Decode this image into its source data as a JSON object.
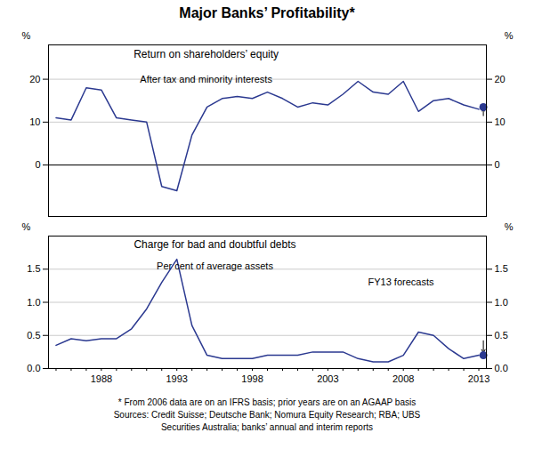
{
  "chart_data": [
    {
      "type": "line",
      "title": "Major Banks’ Profitability*",
      "annotations": [
        "Return on shareholders’ equity",
        "After tax and minority interests"
      ],
      "ylabel": "%",
      "y2label": "%",
      "color": "#2b3990",
      "x": [
        1985,
        1986,
        1987,
        1988,
        1989,
        1990,
        1991,
        1992,
        1993,
        1994,
        1995,
        1996,
        1997,
        1998,
        1999,
        2000,
        2001,
        2002,
        2003,
        2004,
        2005,
        2006,
        2007,
        2008,
        2009,
        2010,
        2011,
        2012,
        2013
      ],
      "values": [
        11.0,
        10.5,
        18.0,
        17.5,
        11.0,
        10.5,
        10.0,
        -5.0,
        -6.0,
        7.0,
        13.5,
        15.5,
        16.0,
        15.5,
        17.0,
        15.5,
        13.5,
        14.5,
        14.0,
        16.5,
        19.5,
        17.0,
        16.5,
        19.5,
        12.5,
        15.0,
        15.5,
        14.0,
        13.0
      ],
      "forecast": {
        "x": 2013.3,
        "y": 13.5
      },
      "arrow": {
        "x": 2013.3,
        "y_tail": 11.5,
        "y_head": 13.0
      },
      "reference_line": 0,
      "xlim": [
        1984.5,
        2013.5
      ],
      "xticks": [
        1988,
        1993,
        1998,
        2003,
        2008,
        2013
      ],
      "ylim": [
        -12,
        28
      ],
      "yticks": [
        0,
        10,
        20
      ],
      "y2lim": [
        -12,
        28
      ],
      "y2ticks": [
        0,
        10,
        20
      ],
      "grid": true,
      "tick_labels": "y"
    },
    {
      "type": "line",
      "annotations": [
        "Charge for bad and doubtful debts",
        "Per cent of average assets",
        "FY13 forecasts"
      ],
      "ylabel": "%",
      "y2label": "%",
      "color": "#2b3990",
      "x": [
        1985,
        1986,
        1987,
        1988,
        1989,
        1990,
        1991,
        1992,
        1993,
        1994,
        1995,
        1996,
        1997,
        1998,
        1999,
        2000,
        2001,
        2002,
        2003,
        2004,
        2005,
        2006,
        2007,
        2008,
        2009,
        2010,
        2011,
        2012,
        2013
      ],
      "values": [
        0.35,
        0.45,
        0.42,
        0.45,
        0.45,
        0.6,
        0.9,
        1.3,
        1.65,
        0.65,
        0.2,
        0.15,
        0.15,
        0.15,
        0.2,
        0.2,
        0.2,
        0.25,
        0.25,
        0.25,
        0.15,
        0.1,
        0.1,
        0.2,
        0.55,
        0.5,
        0.3,
        0.15,
        0.2
      ],
      "forecast": {
        "x": 2013.3,
        "y": 0.2
      },
      "arrow": {
        "x": 2013.3,
        "y_tail": 0.42,
        "y_head": 0.24
      },
      "xlim": [
        1984.5,
        2013.5
      ],
      "xticks": [
        1988,
        1993,
        1998,
        2003,
        2008,
        2013
      ],
      "xticks_minor": [
        1985,
        1986,
        1987,
        1988,
        1989,
        1990,
        1991,
        1992,
        1993,
        1994,
        1995,
        1996,
        1997,
        1998,
        1999,
        2000,
        2001,
        2002,
        2003,
        2004,
        2005,
        2006,
        2007,
        2008,
        2009,
        2010,
        2011,
        2012,
        2013
      ],
      "ylim": [
        0.0,
        2.0
      ],
      "yticks": [
        {
          "value": 0.0,
          "label": "0.0"
        },
        0.5,
        {
          "value": 1.0,
          "label": "1.0"
        },
        1.5
      ],
      "y2lim": [
        0.0,
        2.0
      ],
      "y2ticks": [
        {
          "value": 0.0,
          "label": "0.0"
        },
        0.5,
        {
          "value": 1.0,
          "label": "1.0"
        },
        1.5
      ],
      "grid": true,
      "footnotes": [
        "*   From 2006 data are on an IFRS basis; prior years are on an AGAAP basis",
        "Sources: Credit Suisse; Deutsche Bank; Nomura Equity Research; RBA; UBS",
        "Securities Australia; banks’ annual and interim reports"
      ]
    }
  ]
}
